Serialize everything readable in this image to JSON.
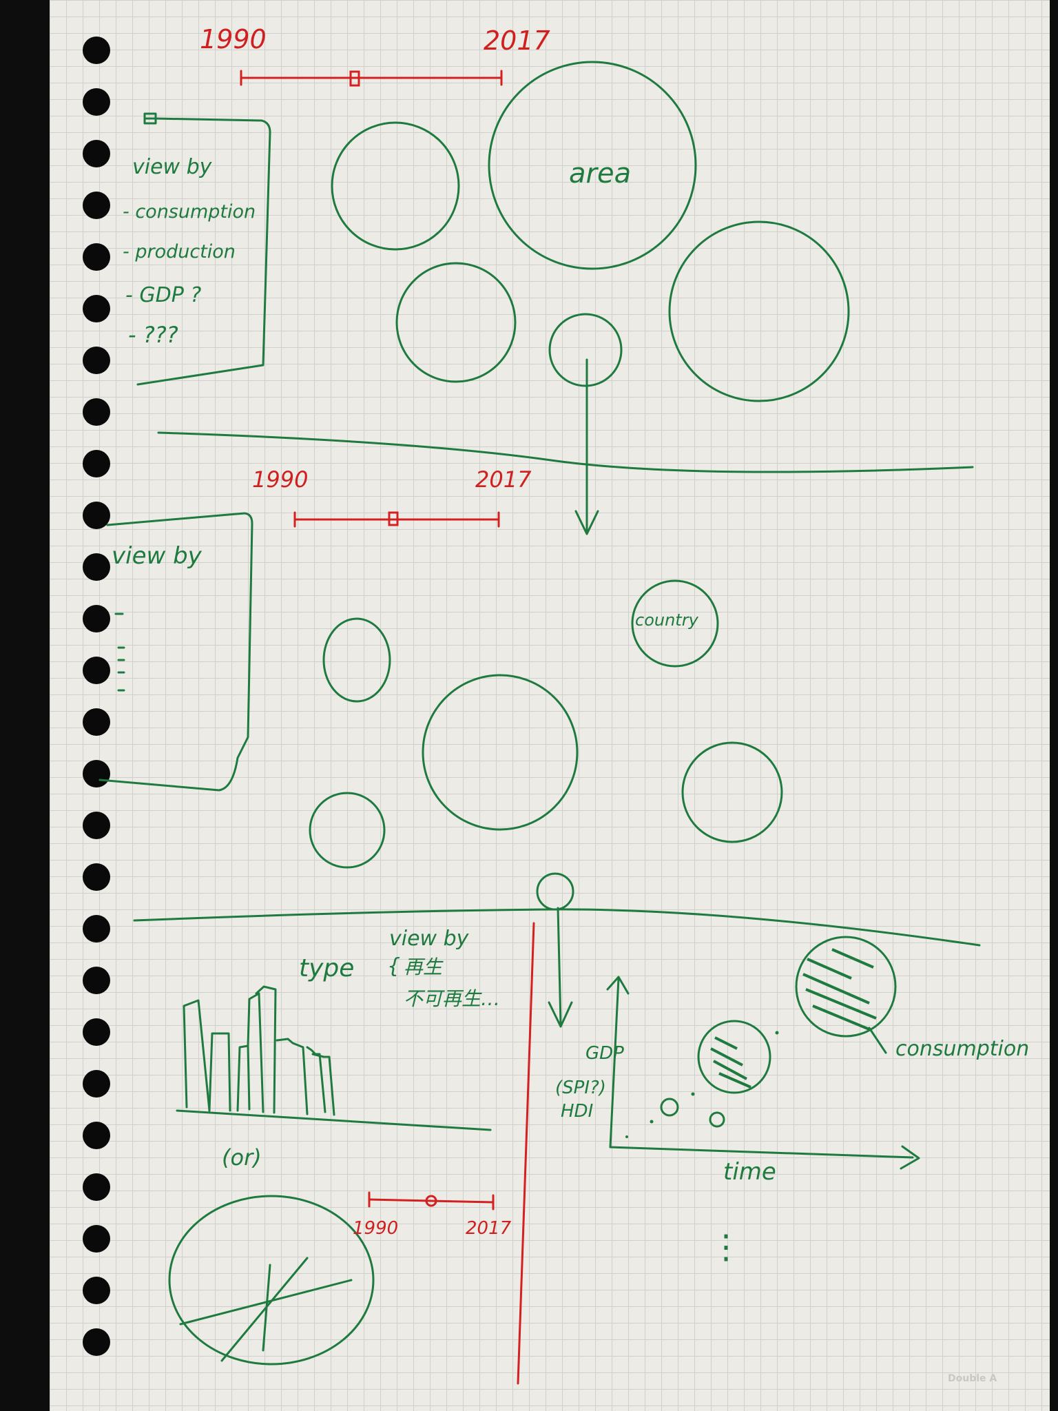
{
  "colors": {
    "green_ink": "#1e7a3e",
    "red_ink": "#d42020",
    "paper": "#ecebe6",
    "grid": "#cfd0cc"
  },
  "section1": {
    "timeline": {
      "start": "1990",
      "end": "2017",
      "value_fraction": 0.45
    },
    "viewby_panel": {
      "title": "view by",
      "options": [
        "- consumption",
        "- production",
        "- GDP ?",
        "- ???"
      ]
    },
    "bubble_label": "area"
  },
  "section2": {
    "timeline": {
      "start": "1990",
      "end": "2017",
      "value_fraction": 0.48
    },
    "viewby_panel": {
      "title": "view by"
    },
    "bubble_label": "country"
  },
  "section3": {
    "type_label": "type",
    "viewby_label": "view by",
    "viewby_options": [
      "再生",
      "不可再生…"
    ],
    "or_label": "(or)",
    "timeline": {
      "start": "1990",
      "end": "2017",
      "value_fraction": 0.5
    },
    "y_axis_labels": [
      "GDP",
      "(SPI?)",
      "HDI"
    ],
    "x_axis_label": "time",
    "bubble_label": "consumption",
    "more_indicator": "⋮"
  },
  "watermark": "Double A"
}
